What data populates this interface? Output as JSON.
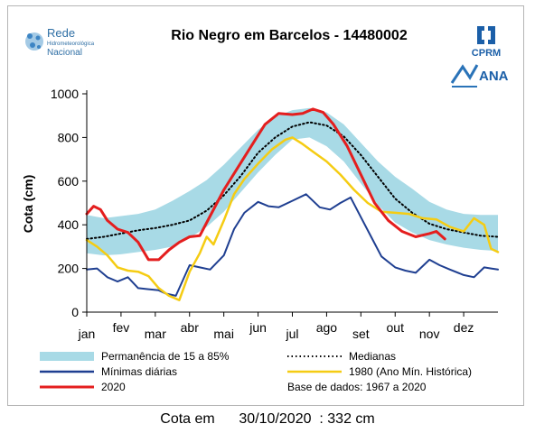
{
  "logos": {
    "rede_line1": "Rede",
    "rede_line2": "Hidrometeorológica",
    "rede_line3": "Nacional",
    "cprm": "CPRM",
    "ana": "ANA"
  },
  "footer": {
    "label": "Cota em",
    "date": "30/10/2020",
    "value": ": 332 cm"
  },
  "colors": {
    "band": "#a8dae6",
    "mediana": "#000000",
    "minimas": "#1f3f91",
    "y1980": "#f5cc13",
    "y2020": "#e41e1e"
  },
  "chart_data": {
    "type": "line",
    "title": "Rio Negro em Barcelos - 14480002",
    "ylabel": "Cota (cm)",
    "xlabel": "",
    "ylim": [
      0,
      1000
    ],
    "yticks": [
      0,
      200,
      400,
      600,
      800,
      1000
    ],
    "xlim": [
      0,
      12
    ],
    "x_tick_positions": [
      0,
      1,
      2,
      3,
      4,
      5,
      6,
      7,
      8,
      9,
      10,
      11
    ],
    "x_tick_labels": [
      "jan",
      "fev",
      "mar",
      "abr",
      "mai",
      "jun",
      "jul",
      "ago",
      "set",
      "out",
      "nov",
      "dez"
    ],
    "x_unit": "month index (0 = start of jan)",
    "grid": false,
    "band": {
      "name": "Permanência de 15 a 85%",
      "x": [
        0,
        0.5,
        1,
        1.5,
        2,
        2.5,
        3,
        3.5,
        4,
        4.5,
        5,
        5.5,
        6,
        6.5,
        7,
        7.5,
        8,
        8.5,
        9,
        9.5,
        10,
        10.5,
        11,
        11.5,
        12
      ],
      "upper": [
        445,
        430,
        440,
        450,
        470,
        510,
        555,
        605,
        675,
        755,
        835,
        895,
        925,
        935,
        915,
        860,
        775,
        690,
        620,
        565,
        505,
        470,
        450,
        445,
        445
      ],
      "lower": [
        270,
        260,
        265,
        275,
        285,
        300,
        340,
        390,
        460,
        550,
        640,
        720,
        790,
        800,
        760,
        690,
        590,
        490,
        410,
        365,
        330,
        310,
        295,
        285,
        280
      ]
    },
    "series": [
      {
        "name": "Medianas",
        "style": "dotted",
        "x": [
          0,
          0.5,
          1,
          1.5,
          2,
          2.5,
          3,
          3.5,
          4,
          4.5,
          5,
          5.5,
          6,
          6.5,
          7,
          7.5,
          8,
          8.5,
          9,
          9.5,
          10,
          10.5,
          11,
          11.5,
          12
        ],
        "values": [
          335,
          345,
          360,
          375,
          385,
          400,
          420,
          465,
          535,
          625,
          730,
          800,
          850,
          870,
          855,
          805,
          720,
          620,
          520,
          455,
          405,
          380,
          365,
          350,
          345
        ]
      },
      {
        "name": "Mínimas diárias",
        "x": [
          0,
          0.3,
          0.6,
          0.9,
          1.2,
          1.5,
          1.8,
          2.1,
          2.3,
          2.6,
          3.0,
          3.3,
          3.6,
          4.0,
          4.3,
          4.6,
          5.0,
          5.3,
          5.6,
          6.0,
          6.4,
          6.8,
          7.1,
          7.4,
          7.7,
          8.0,
          8.3,
          8.6,
          9.0,
          9.3,
          9.6,
          10.0,
          10.3,
          10.6,
          11.0,
          11.3,
          11.6,
          11.8,
          12.0
        ],
        "values": [
          195,
          200,
          160,
          140,
          160,
          110,
          105,
          100,
          85,
          75,
          215,
          205,
          195,
          260,
          380,
          455,
          505,
          485,
          480,
          510,
          540,
          480,
          470,
          500,
          525,
          435,
          345,
          255,
          205,
          190,
          180,
          240,
          215,
          195,
          170,
          160,
          205,
          200,
          195
        ]
      },
      {
        "name": "1980 (Ano Mín. Histórica)",
        "x": [
          0,
          0.3,
          0.6,
          0.9,
          1.2,
          1.5,
          1.8,
          2.1,
          2.4,
          2.7,
          3.0,
          3.3,
          3.5,
          3.7,
          4.0,
          4.3,
          4.6,
          5.0,
          5.4,
          5.8,
          6.0,
          6.3,
          6.6,
          7.0,
          7.4,
          7.8,
          8.2,
          8.6,
          9.0,
          9.4,
          9.8,
          10.2,
          10.6,
          11.0,
          11.3,
          11.6,
          11.8,
          12.0
        ],
        "values": [
          330,
          300,
          260,
          205,
          190,
          185,
          165,
          110,
          75,
          55,
          185,
          270,
          345,
          310,
          420,
          540,
          610,
          680,
          745,
          790,
          800,
          770,
          735,
          690,
          630,
          560,
          500,
          460,
          455,
          450,
          430,
          425,
          390,
          370,
          430,
          400,
          290,
          275
        ]
      },
      {
        "name": "2020",
        "x": [
          0,
          0.2,
          0.4,
          0.6,
          0.9,
          1.2,
          1.5,
          1.8,
          2.1,
          2.4,
          2.7,
          3.0,
          3.3,
          3.6,
          4.0,
          4.4,
          4.8,
          5.2,
          5.6,
          6.0,
          6.3,
          6.6,
          6.9,
          7.2,
          7.6,
          8.0,
          8.4,
          8.8,
          9.2,
          9.6,
          10.0,
          10.2,
          10.45
        ],
        "values": [
          450,
          485,
          470,
          420,
          380,
          365,
          320,
          240,
          240,
          285,
          320,
          345,
          350,
          440,
          560,
          660,
          760,
          860,
          910,
          905,
          910,
          930,
          915,
          860,
          760,
          630,
          500,
          420,
          370,
          345,
          360,
          370,
          335
        ]
      }
    ],
    "legend": {
      "placement": "bottom",
      "entries": [
        "Permanência de 15 a 85%",
        "Mínimas diárias",
        "2020",
        "Medianas",
        "1980 (Ano Mín. Histórica)"
      ],
      "note": "Base de dados: 1967 a 2020"
    }
  }
}
